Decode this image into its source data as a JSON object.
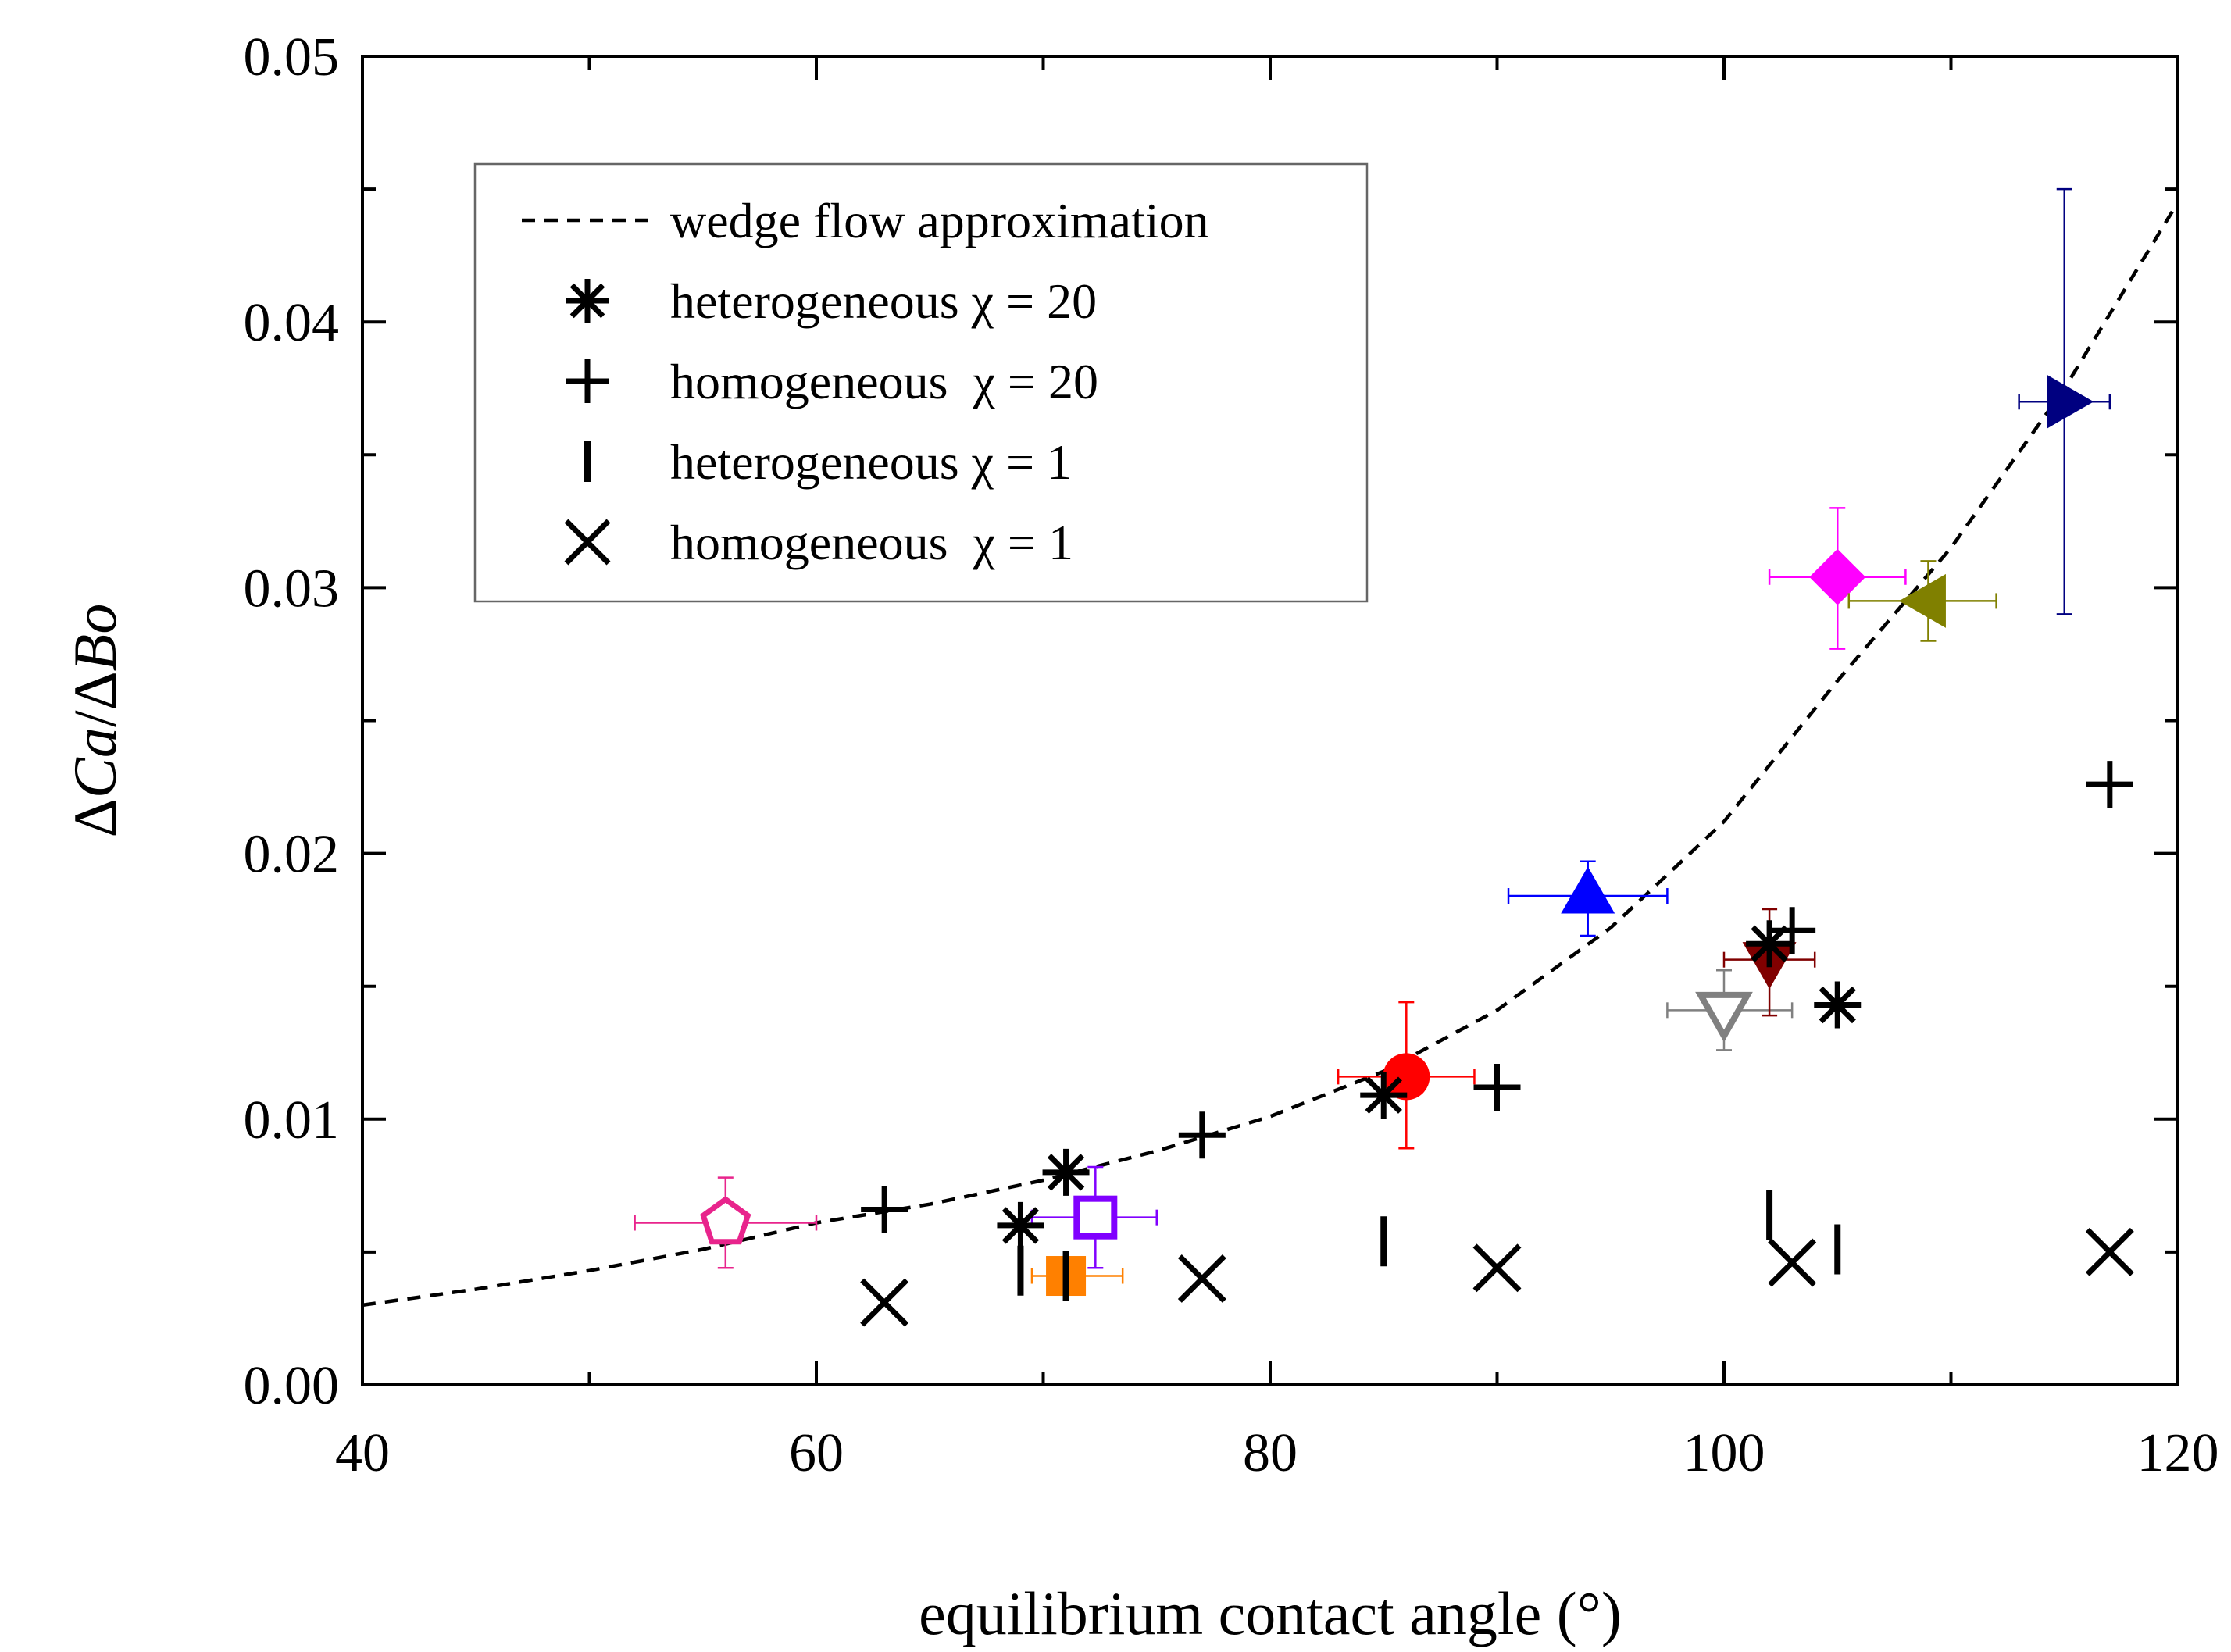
{
  "chart_data": {
    "type": "scatter",
    "title": "",
    "xlabel": "equilibrium contact angle (°)",
    "ylabel": "ΔCa/ΔBo",
    "ylabel_parts": [
      "Δ",
      "Ca",
      "/",
      "Δ",
      "Bo"
    ],
    "xlim": [
      40,
      120
    ],
    "ylim": [
      0,
      0.05
    ],
    "x_ticks": [
      40,
      60,
      80,
      100,
      120
    ],
    "x_tick_labels": [
      "40",
      "60",
      "80",
      "100",
      "120"
    ],
    "y_ticks": [
      0,
      0.01,
      0.02,
      0.03,
      0.04,
      0.05
    ],
    "y_tick_labels": [
      "0.00",
      "0.01",
      "0.02",
      "0.03",
      "0.04",
      "0.05"
    ],
    "grid": false,
    "legend_position": "upper-left",
    "curve": {
      "name": "wedge flow approximation",
      "style": "dashed",
      "color": "#000000",
      "x": [
        40,
        45,
        50,
        55,
        60,
        65,
        70,
        75,
        80,
        85,
        90,
        95,
        100,
        105,
        110,
        115,
        120
      ],
      "y": [
        0.003,
        0.0036,
        0.0043,
        0.0051,
        0.0061,
        0.0068,
        0.0077,
        0.0088,
        0.0101,
        0.0118,
        0.0141,
        0.0172,
        0.0212,
        0.0265,
        0.0315,
        0.0375,
        0.0445
      ]
    },
    "series": [
      {
        "name": "heterogeneous χ = 20",
        "marker": "asterisk",
        "color": "#000000",
        "x": [
          69,
          71,
          85,
          102,
          105
        ],
        "y": [
          0.006,
          0.008,
          0.0109,
          0.0166,
          0.0143
        ]
      },
      {
        "name": "homogeneous χ = 20",
        "marker": "plus",
        "color": "#000000",
        "x": [
          63,
          77,
          90,
          103,
          117
        ],
        "y": [
          0.0066,
          0.0094,
          0.0112,
          0.0171,
          0.0226
        ]
      },
      {
        "name": "heterogeneous χ = 1",
        "marker": "vline",
        "color": "#000000",
        "x": [
          69,
          71,
          85,
          102,
          105
        ],
        "y": [
          0.0043,
          0.0041,
          0.0054,
          0.0064,
          0.0051
        ]
      },
      {
        "name": "homogeneous χ = 1",
        "marker": "x",
        "color": "#000000",
        "x": [
          63,
          77,
          90,
          103,
          117
        ],
        "y": [
          0.0031,
          0.004,
          0.0044,
          0.0046,
          0.005
        ]
      }
    ],
    "experimental_points": [
      {
        "name": "pentagon",
        "marker": "pentagon-open",
        "color": "#e8248c",
        "x": 56,
        "y": 0.0061,
        "xerr": [
          52,
          60
        ],
        "yerr": [
          0.0044,
          0.0078
        ]
      },
      {
        "name": "square-orange",
        "marker": "square",
        "color": "#ff8000",
        "x": 71,
        "y": 0.0041,
        "xerr": [
          69.5,
          73.5
        ],
        "yerr": [
          0.0036,
          0.0046
        ]
      },
      {
        "name": "square-purple",
        "marker": "square-open",
        "color": "#8000ff",
        "x": 72.3,
        "y": 0.0063,
        "xerr": [
          69.5,
          75
        ],
        "yerr": [
          0.0044,
          0.0082
        ]
      },
      {
        "name": "circle",
        "marker": "circle",
        "color": "#ff0000",
        "x": 86,
        "y": 0.0116,
        "xerr": [
          83,
          89
        ],
        "yerr": [
          0.0089,
          0.0144
        ]
      },
      {
        "name": "triangle-up",
        "marker": "triangle-up",
        "color": "#0000ff",
        "x": 94,
        "y": 0.0184,
        "xerr": [
          90.5,
          97.5
        ],
        "yerr": [
          0.0169,
          0.0197
        ]
      },
      {
        "name": "triangle-down-open",
        "marker": "triangle-down-open",
        "color": "#808080",
        "x": 100,
        "y": 0.0141,
        "xerr": [
          97.5,
          103
        ],
        "yerr": [
          0.0126,
          0.0156
        ]
      },
      {
        "name": "triangle-down",
        "marker": "triangle-down",
        "color": "#800000",
        "x": 102,
        "y": 0.016,
        "xerr": [
          100,
          104
        ],
        "yerr": [
          0.0139,
          0.0179
        ]
      },
      {
        "name": "diamond",
        "marker": "diamond",
        "color": "#ff00ff",
        "x": 105,
        "y": 0.0304,
        "xerr": [
          102,
          108
        ],
        "yerr": [
          0.0277,
          0.033
        ]
      },
      {
        "name": "triangle-left",
        "marker": "triangle-left",
        "color": "#808000",
        "x": 109,
        "y": 0.0295,
        "xerr": [
          105.5,
          112
        ],
        "yerr": [
          0.028,
          0.031
        ]
      },
      {
        "name": "triangle-right",
        "marker": "triangle-right",
        "color": "#000080",
        "x": 115,
        "y": 0.037,
        "xerr": [
          113,
          117
        ],
        "yerr": [
          0.029,
          0.045
        ]
      }
    ],
    "legend": [
      {
        "label": "wedge flow approximation",
        "symbol": "dashed"
      },
      {
        "label": "heterogeneous χ = 20",
        "symbol": "asterisk"
      },
      {
        "label": "homogeneous  χ = 20",
        "symbol": "plus"
      },
      {
        "label": "heterogeneous χ = 1",
        "symbol": "vline"
      },
      {
        "label": "homogeneous  χ = 1",
        "symbol": "x"
      }
    ]
  }
}
